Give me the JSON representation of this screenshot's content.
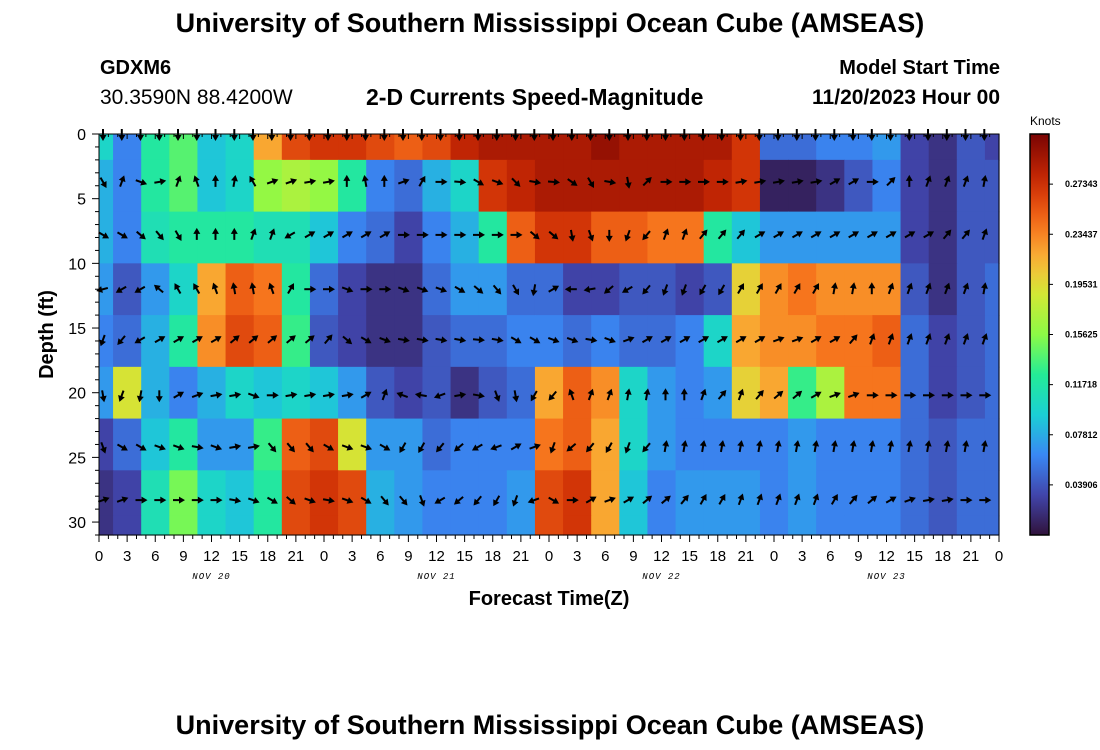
{
  "header": {
    "title": "University of Southern Mississippi Ocean Cube (AMSEAS)",
    "station_id": "GDXM6",
    "coordinates": "30.3590N  88.4200W",
    "plot_title": "2-D Currents Speed-Magnitude",
    "model_start_label": "Model Start Time",
    "model_start_value": "11/20/2023 Hour 00"
  },
  "footer": {
    "title": "University of Southern Mississippi Ocean Cube (AMSEAS)"
  },
  "chart_data": {
    "type": "heatmap",
    "xlabel": "Forecast Time(Z)",
    "ylabel": "Depth (ft)",
    "x_hours": [
      0,
      96
    ],
    "x_tick_step_hours": 3,
    "x_tick_labels": [
      "0",
      "3",
      "6",
      "9",
      "12",
      "15",
      "18",
      "21",
      "0",
      "3",
      "6",
      "9",
      "12",
      "15",
      "18",
      "21",
      "0",
      "3",
      "6",
      "9",
      "12",
      "15",
      "18",
      "21",
      "0",
      "3",
      "6",
      "9",
      "12",
      "15",
      "18",
      "21",
      "0"
    ],
    "date_labels": [
      {
        "hour": 12,
        "label": "NOV 20"
      },
      {
        "hour": 36,
        "label": "NOV 21"
      },
      {
        "hour": 60,
        "label": "NOV 22"
      },
      {
        "hour": 84,
        "label": "NOV 23"
      }
    ],
    "y_ticks": [
      0,
      5,
      10,
      15,
      20,
      25,
      30
    ],
    "ylim": [
      0,
      31
    ],
    "colorbar": {
      "title": "Knots",
      "range": [
        0,
        0.3125
      ],
      "tick_values": [
        0.27343,
        0.23437,
        0.19531,
        0.15625,
        0.11718,
        0.07812,
        0.03906
      ],
      "tick_labels": [
        "0.27343",
        "0.23437",
        "0.19531",
        "0.15625",
        "0.11718",
        "0.07812",
        "0.03906"
      ]
    },
    "speed_grid_knots": {
      "x_hours": [
        0,
        3,
        6,
        9,
        12,
        15,
        18,
        21,
        24,
        27,
        30,
        33,
        36,
        39,
        42,
        45,
        48,
        51,
        54,
        57,
        60,
        63,
        66,
        69,
        72,
        75,
        78,
        81,
        84,
        87,
        90,
        93,
        96
      ],
      "depths_ft": [
        0,
        4,
        8,
        12,
        16,
        20,
        24,
        28,
        31
      ],
      "rows": [
        [
          0.1,
          0.06,
          0.12,
          0.14,
          0.09,
          0.1,
          0.22,
          0.26,
          0.27,
          0.27,
          0.26,
          0.25,
          0.26,
          0.28,
          0.29,
          0.29,
          0.29,
          0.29,
          0.3,
          0.29,
          0.29,
          0.29,
          0.29,
          0.27,
          0.05,
          0.05,
          0.06,
          0.06,
          0.07,
          0.03,
          0.02,
          0.04,
          0.03
        ],
        [
          0.08,
          0.06,
          0.12,
          0.14,
          0.09,
          0.1,
          0.16,
          0.17,
          0.16,
          0.12,
          0.06,
          0.05,
          0.08,
          0.1,
          0.27,
          0.28,
          0.29,
          0.29,
          0.29,
          0.29,
          0.29,
          0.29,
          0.28,
          0.27,
          0.01,
          0.01,
          0.02,
          0.04,
          0.06,
          0.03,
          0.02,
          0.04,
          0.04
        ],
        [
          0.08,
          0.06,
          0.11,
          0.12,
          0.12,
          0.12,
          0.11,
          0.11,
          0.09,
          0.06,
          0.05,
          0.03,
          0.06,
          0.08,
          0.12,
          0.25,
          0.27,
          0.27,
          0.25,
          0.25,
          0.24,
          0.24,
          0.12,
          0.09,
          0.07,
          0.07,
          0.07,
          0.07,
          0.07,
          0.03,
          0.02,
          0.04,
          0.04
        ],
        [
          0.07,
          0.04,
          0.07,
          0.1,
          0.22,
          0.25,
          0.24,
          0.12,
          0.05,
          0.03,
          0.02,
          0.02,
          0.05,
          0.07,
          0.07,
          0.05,
          0.05,
          0.03,
          0.03,
          0.04,
          0.04,
          0.03,
          0.04,
          0.2,
          0.23,
          0.24,
          0.23,
          0.23,
          0.23,
          0.04,
          0.02,
          0.04,
          0.05
        ],
        [
          0.06,
          0.05,
          0.08,
          0.12,
          0.23,
          0.26,
          0.25,
          0.13,
          0.04,
          0.03,
          0.02,
          0.02,
          0.04,
          0.05,
          0.05,
          0.06,
          0.06,
          0.05,
          0.06,
          0.05,
          0.05,
          0.06,
          0.1,
          0.22,
          0.23,
          0.23,
          0.24,
          0.24,
          0.25,
          0.05,
          0.03,
          0.04,
          0.05
        ],
        [
          0.07,
          0.19,
          0.08,
          0.06,
          0.08,
          0.1,
          0.09,
          0.1,
          0.09,
          0.07,
          0.04,
          0.03,
          0.04,
          0.02,
          0.04,
          0.05,
          0.22,
          0.25,
          0.23,
          0.1,
          0.07,
          0.06,
          0.07,
          0.2,
          0.22,
          0.13,
          0.17,
          0.24,
          0.24,
          0.05,
          0.03,
          0.04,
          0.05
        ],
        [
          0.03,
          0.05,
          0.09,
          0.12,
          0.07,
          0.07,
          0.13,
          0.25,
          0.26,
          0.19,
          0.07,
          0.07,
          0.05,
          0.06,
          0.06,
          0.06,
          0.24,
          0.25,
          0.22,
          0.1,
          0.07,
          0.06,
          0.06,
          0.06,
          0.06,
          0.07,
          0.06,
          0.06,
          0.06,
          0.05,
          0.04,
          0.05,
          0.05
        ],
        [
          0.02,
          0.03,
          0.11,
          0.15,
          0.1,
          0.09,
          0.12,
          0.26,
          0.27,
          0.26,
          0.08,
          0.07,
          0.06,
          0.06,
          0.06,
          0.07,
          0.26,
          0.27,
          0.22,
          0.09,
          0.06,
          0.07,
          0.07,
          0.07,
          0.06,
          0.07,
          0.06,
          0.06,
          0.06,
          0.05,
          0.04,
          0.05,
          0.05
        ],
        [
          0.02,
          0.03,
          0.11,
          0.15,
          0.1,
          0.09,
          0.12,
          0.26,
          0.27,
          0.26,
          0.08,
          0.07,
          0.06,
          0.06,
          0.06,
          0.07,
          0.26,
          0.27,
          0.22,
          0.09,
          0.06,
          0.07,
          0.07,
          0.07,
          0.06,
          0.07,
          0.06,
          0.06,
          0.06,
          0.05,
          0.04,
          0.05,
          0.05
        ]
      ]
    },
    "vector_grid": {
      "x_hours": [
        0,
        2,
        4,
        6,
        8,
        10,
        12,
        14,
        16,
        18,
        20,
        22,
        24,
        26,
        28,
        30,
        32,
        34,
        36,
        38,
        40,
        42,
        44,
        46,
        48,
        50,
        52,
        54,
        56,
        58,
        60,
        62,
        64,
        66,
        68,
        70,
        72,
        74,
        76,
        78,
        80,
        82,
        84,
        86,
        88,
        90,
        92,
        94
      ],
      "depths_ft": [
        0,
        3.7,
        7.8,
        12,
        15.9,
        20.2,
        24.2,
        28.3
      ],
      "direction_deg_rows": [
        [
          180,
          180,
          180,
          180,
          180,
          180,
          180,
          180,
          180,
          180,
          180,
          180,
          180,
          180,
          180,
          180,
          180,
          180,
          180,
          180,
          180,
          180,
          180,
          180,
          180,
          180,
          180,
          180,
          180,
          180,
          180,
          180,
          180,
          180,
          180,
          180,
          180,
          180,
          180,
          180,
          180,
          180,
          180,
          180,
          180,
          180,
          180,
          180
        ],
        [
          150,
          20,
          110,
          80,
          20,
          340,
          0,
          10,
          330,
          70,
          70,
          80,
          80,
          0,
          350,
          0,
          70,
          30,
          90,
          95,
          120,
          110,
          135,
          100,
          95,
          125,
          150,
          100,
          170,
          45,
          90,
          90,
          90,
          90,
          80,
          80,
          80,
          80,
          80,
          60,
          60,
          90,
          45,
          0,
          20,
          20,
          20,
          10
        ],
        [
          120,
          120,
          130,
          140,
          150,
          0,
          0,
          0,
          20,
          20,
          240,
          60,
          60,
          60,
          60,
          60,
          90,
          90,
          90,
          90,
          90,
          90,
          90,
          130,
          130,
          170,
          160,
          180,
          200,
          220,
          20,
          20,
          40,
          40,
          40,
          60,
          60,
          60,
          60,
          60,
          60,
          60,
          60,
          60,
          60,
          40,
          40,
          20
        ],
        [
          255,
          240,
          240,
          310,
          330,
          330,
          340,
          350,
          350,
          340,
          30,
          90,
          90,
          110,
          90,
          90,
          110,
          110,
          110,
          120,
          130,
          140,
          150,
          190,
          60,
          270,
          260,
          230,
          240,
          220,
          200,
          200,
          210,
          210,
          30,
          30,
          30,
          30,
          30,
          10,
          10,
          0,
          20,
          20,
          20,
          20,
          20,
          10
        ],
        [
          200,
          220,
          240,
          60,
          60,
          60,
          60,
          50,
          50,
          50,
          50,
          50,
          40,
          130,
          120,
          110,
          100,
          100,
          100,
          100,
          95,
          100,
          120,
          120,
          110,
          110,
          100,
          110,
          70,
          60,
          60,
          60,
          60,
          60,
          60,
          60,
          70,
          70,
          60,
          60,
          40,
          20,
          20,
          20,
          20,
          20,
          20,
          20
        ],
        [
          170,
          200,
          190,
          180,
          60,
          70,
          80,
          80,
          110,
          90,
          80,
          80,
          80,
          80,
          60,
          20,
          290,
          280,
          250,
          80,
          100,
          160,
          170,
          210,
          220,
          340,
          20,
          20,
          10,
          10,
          0,
          0,
          20,
          40,
          20,
          40,
          50,
          50,
          60,
          70,
          70,
          90,
          90,
          90,
          90,
          90,
          90,
          90
        ],
        [
          160,
          120,
          120,
          110,
          110,
          100,
          110,
          80,
          80,
          140,
          140,
          140,
          120,
          110,
          110,
          120,
          210,
          210,
          220,
          230,
          240,
          250,
          60,
          70,
          200,
          230,
          220,
          210,
          200,
          220,
          10,
          10,
          10,
          10,
          10,
          10,
          10,
          10,
          10,
          10,
          10,
          10,
          10,
          10,
          10,
          10,
          10,
          10
        ],
        [
          70,
          70,
          90,
          90,
          90,
          90,
          90,
          100,
          110,
          120,
          130,
          110,
          100,
          110,
          120,
          140,
          140,
          160,
          240,
          230,
          220,
          210,
          200,
          250,
          120,
          90,
          60,
          70,
          60,
          50,
          50,
          40,
          30,
          30,
          20,
          20,
          20,
          20,
          20,
          30,
          40,
          50,
          60,
          70,
          80,
          80,
          90,
          90
        ]
      ]
    }
  }
}
